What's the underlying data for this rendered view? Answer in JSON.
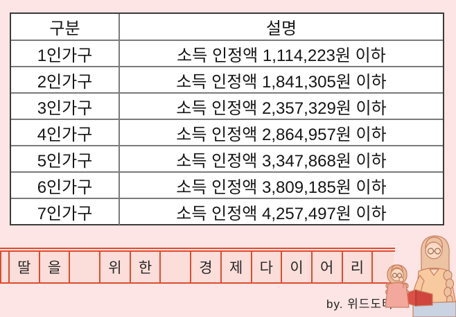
{
  "page": {
    "background_color": "#fce5e4",
    "accent_line_color": "#e04b2d",
    "table_border_outer": "#3a3a3a",
    "table_border_inner": "#7a7a7a"
  },
  "table": {
    "headers": [
      "구분",
      "설명"
    ],
    "rows": [
      [
        "1인가구",
        "소득 인정액 1,114,223원 이하"
      ],
      [
        "2인가구",
        "소득 인정액 1,841,305원 이하"
      ],
      [
        "3인가구",
        "소득 인정액 2,357,329원 이하"
      ],
      [
        "4인가구",
        "소득 인정액 2,864,957원 이하"
      ],
      [
        "5인가구",
        "소득 인정액 3,347,868원 이하"
      ],
      [
        "6인가구",
        "소득 인정액 3,809,185원 이하"
      ],
      [
        "7인가구",
        "소득 인정액 4,257,497원 이하"
      ]
    ]
  },
  "banner": {
    "cells": [
      "",
      "딸",
      "을",
      "",
      "위",
      "한",
      "",
      "경",
      "제",
      "다",
      "이",
      "어",
      "리",
      ""
    ],
    "signature": "by. 위드도터"
  },
  "illustration": {
    "name": "mother-daughter-reading",
    "book_color": "#dd5048",
    "hair_color": "#ecc3a3",
    "outline_color": "#c97e5f"
  }
}
